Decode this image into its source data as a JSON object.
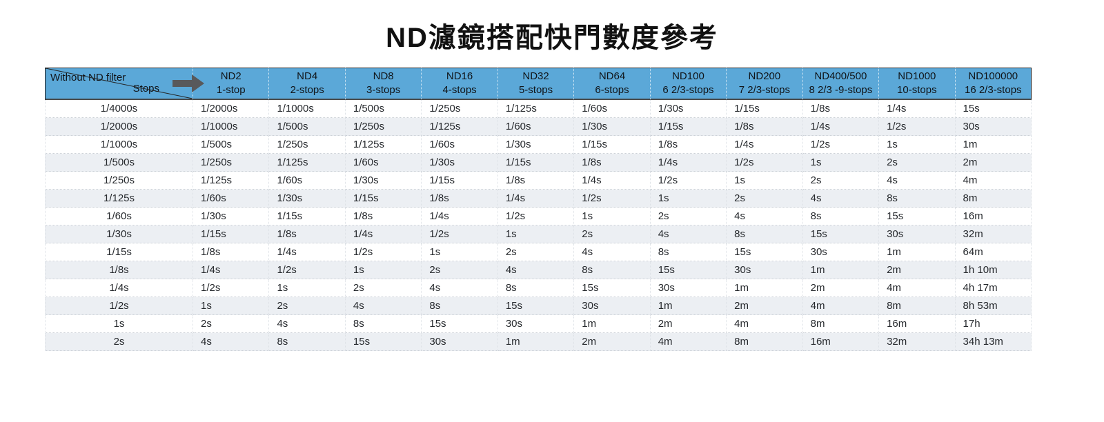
{
  "colors": {
    "header_bg": "#5BA8D8",
    "row_alt_bg": "#ECEFF3",
    "arrow": "#58595B",
    "dark_border": "#222222",
    "text": "#26292D"
  },
  "chart_data": {
    "type": "table",
    "title": "ND濾鏡搭配快門數度參考",
    "corner": {
      "top_label": "Without ND filter",
      "bottom_label": "Stops",
      "arrow_icon": "right-arrow"
    },
    "columns": [
      {
        "name": "ND2",
        "stops": "1-stop"
      },
      {
        "name": "ND4",
        "stops": "2-stops"
      },
      {
        "name": "ND8",
        "stops": "3-stops"
      },
      {
        "name": "ND16",
        "stops": "4-stops"
      },
      {
        "name": "ND32",
        "stops": "5-stops"
      },
      {
        "name": "ND64",
        "stops": "6-stops"
      },
      {
        "name": "ND100",
        "stops": "6 2/3-stops"
      },
      {
        "name": "ND200",
        "stops": "7 2/3-stops"
      },
      {
        "name": "ND400/500",
        "stops": "8 2/3 -9-stops"
      },
      {
        "name": "ND1000",
        "stops": "10-stops"
      },
      {
        "name": "ND100000",
        "stops": "16 2/3-stops"
      }
    ],
    "rows": [
      [
        "1/4000s",
        "1/2000s",
        "1/1000s",
        "1/500s",
        "1/250s",
        "1/125s",
        "1/60s",
        "1/30s",
        "1/15s",
        "1/8s",
        "1/4s",
        "15s"
      ],
      [
        "1/2000s",
        "1/1000s",
        "1/500s",
        "1/250s",
        "1/125s",
        "1/60s",
        "1/30s",
        "1/15s",
        "1/8s",
        "1/4s",
        "1/2s",
        "30s"
      ],
      [
        "1/1000s",
        "1/500s",
        "1/250s",
        "1/125s",
        "1/60s",
        "1/30s",
        "1/15s",
        "1/8s",
        "1/4s",
        "1/2s",
        "1s",
        "1m"
      ],
      [
        "1/500s",
        "1/250s",
        "1/125s",
        "1/60s",
        "1/30s",
        "1/15s",
        "1/8s",
        "1/4s",
        "1/2s",
        "1s",
        "2s",
        "2m"
      ],
      [
        "1/250s",
        "1/125s",
        "1/60s",
        "1/30s",
        "1/15s",
        "1/8s",
        "1/4s",
        "1/2s",
        "1s",
        "2s",
        "4s",
        "4m"
      ],
      [
        "1/125s",
        "1/60s",
        "1/30s",
        "1/15s",
        "1/8s",
        "1/4s",
        "1/2s",
        "1s",
        "2s",
        "4s",
        "8s",
        "8m"
      ],
      [
        "1/60s",
        "1/30s",
        "1/15s",
        "1/8s",
        "1/4s",
        "1/2s",
        "1s",
        "2s",
        "4s",
        "8s",
        "15s",
        "16m"
      ],
      [
        "1/30s",
        "1/15s",
        "1/8s",
        "1/4s",
        "1/2s",
        "1s",
        "2s",
        "4s",
        "8s",
        "15s",
        "30s",
        "32m"
      ],
      [
        "1/15s",
        "1/8s",
        "1/4s",
        "1/2s",
        "1s",
        "2s",
        "4s",
        "8s",
        "15s",
        "30s",
        "1m",
        "64m"
      ],
      [
        "1/8s",
        "1/4s",
        "1/2s",
        "1s",
        "2s",
        "4s",
        "8s",
        "15s",
        "30s",
        "1m",
        "2m",
        "1h 10m"
      ],
      [
        "1/4s",
        "1/2s",
        "1s",
        "2s",
        "4s",
        "8s",
        "15s",
        "30s",
        "1m",
        "2m",
        "4m",
        "4h 17m"
      ],
      [
        "1/2s",
        "1s",
        "2s",
        "4s",
        "8s",
        "15s",
        "30s",
        "1m",
        "2m",
        "4m",
        "8m",
        "8h 53m"
      ],
      [
        "1s",
        "2s",
        "4s",
        "8s",
        "15s",
        "30s",
        "1m",
        "2m",
        "4m",
        "8m",
        "16m",
        "17h"
      ],
      [
        "2s",
        "4s",
        "8s",
        "15s",
        "30s",
        "1m",
        "2m",
        "4m",
        "8m",
        "16m",
        "32m",
        "34h 13m"
      ]
    ]
  }
}
